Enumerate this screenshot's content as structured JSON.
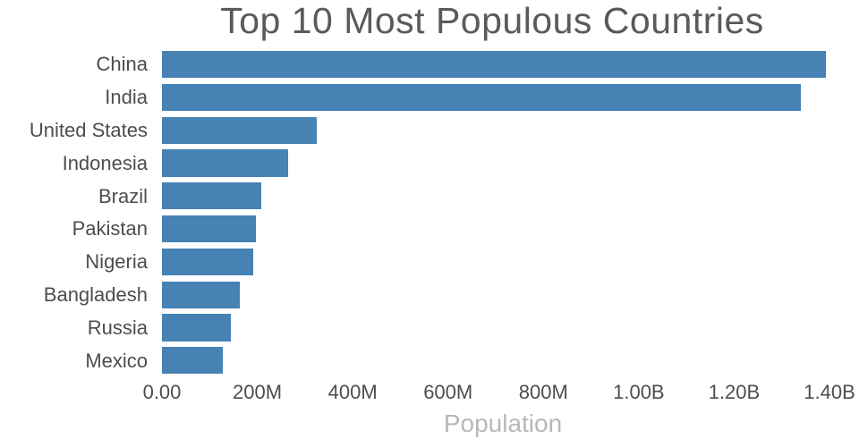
{
  "chart_data": {
    "type": "bar",
    "orientation": "horizontal",
    "title": "Top 10 Most Populous Countries",
    "xlabel": "Population",
    "ylabel": "",
    "categories": [
      "China",
      "India",
      "United States",
      "Indonesia",
      "Brazil",
      "Pakistan",
      "Nigeria",
      "Bangladesh",
      "Russia",
      "Mexico"
    ],
    "values_millions": [
      1393,
      1339,
      325,
      264,
      209,
      197,
      191,
      163,
      144,
      127
    ],
    "x_ticks": [
      {
        "label": "0.00",
        "value_millions": 0
      },
      {
        "label": "200M",
        "value_millions": 200
      },
      {
        "label": "400M",
        "value_millions": 400
      },
      {
        "label": "600M",
        "value_millions": 600
      },
      {
        "label": "800M",
        "value_millions": 800
      },
      {
        "label": "1.00B",
        "value_millions": 1000
      },
      {
        "label": "1.20B",
        "value_millions": 1200
      },
      {
        "label": "1.40B",
        "value_millions": 1400
      }
    ],
    "xlim_millions": [
      0,
      1430
    ],
    "grid": false,
    "legend": false,
    "bar_color": "#4682b4",
    "background": "#ffffff",
    "title_color": "#5a5a5a",
    "tick_color": "#4d4d4d",
    "xlabel_color": "#b8b8b8"
  }
}
